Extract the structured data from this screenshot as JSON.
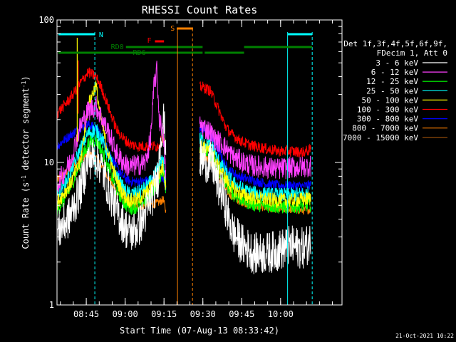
{
  "chart_data": {
    "type": "line",
    "title": "RHESSI Count Rates",
    "xlabel": "Start Time (07-Aug-13 08:33:42)",
    "ylabel_main": "Count Rate (s",
    "ylabel_sup1": "-1",
    "ylabel_mid": " detector segment",
    "ylabel_sup2": "-1",
    "ylabel_end": ")",
    "y_scale": "log",
    "ylim": [
      1,
      100
    ],
    "y_ticks": [
      {
        "v": 1,
        "label": "1"
      },
      {
        "v": 10,
        "label": "10"
      },
      {
        "v": 100,
        "label": "100"
      }
    ],
    "xlim_min": [
      0,
      110
    ],
    "x_ticks": [
      {
        "t": 11.3,
        "label": "08:45"
      },
      {
        "t": 26.3,
        "label": "09:00"
      },
      {
        "t": 41.3,
        "label": "09:15"
      },
      {
        "t": 56.3,
        "label": "09:30"
      },
      {
        "t": 71.3,
        "label": "09:45"
      },
      {
        "t": 86.3,
        "label": "10:00"
      }
    ],
    "legend": {
      "header1": "Det 1f,3f,4f,5f,6f,9f,",
      "header2": "FDecim 1, Att 0",
      "position": "right"
    },
    "series": [
      {
        "name": "3 - 6 keV",
        "color": "#ffffff",
        "noise": 0.34,
        "gap": [
          42,
          55
        ],
        "points": [
          [
            0,
            3.2
          ],
          [
            5,
            4.2
          ],
          [
            9,
            6.5
          ],
          [
            12,
            10.5
          ],
          [
            15,
            11
          ],
          [
            17,
            9.5
          ],
          [
            20,
            6.5
          ],
          [
            23,
            4.6
          ],
          [
            26,
            3.6
          ],
          [
            28,
            3.2
          ],
          [
            31,
            3.4
          ],
          [
            34,
            4.3
          ],
          [
            37,
            6
          ],
          [
            39,
            8
          ],
          [
            40,
            15
          ],
          [
            41,
            21
          ],
          [
            42,
            13
          ],
          [
            45,
            8
          ],
          [
            46,
            12
          ],
          [
            48,
            12
          ],
          [
            52,
            11.5
          ],
          [
            56,
            10.3
          ],
          [
            60,
            9.8
          ],
          [
            62,
            7
          ],
          [
            64,
            6
          ],
          [
            66,
            4.2
          ],
          [
            68,
            3.2
          ],
          [
            72,
            2.6
          ],
          [
            76,
            2.3
          ],
          [
            80,
            2.3
          ],
          [
            85,
            2.4
          ],
          [
            90,
            2.6
          ],
          [
            95,
            2.5
          ],
          [
            98,
            2.8
          ]
        ]
      },
      {
        "name": "6 - 12 keV",
        "color": "#ff40ff",
        "noise": 0.18,
        "gap": [
          42,
          55
        ],
        "points": [
          [
            0,
            7
          ],
          [
            5,
            10
          ],
          [
            9,
            18
          ],
          [
            12,
            23
          ],
          [
            15,
            25
          ],
          [
            17,
            21
          ],
          [
            20,
            16
          ],
          [
            23,
            11.5
          ],
          [
            26,
            9.8
          ],
          [
            28,
            9.3
          ],
          [
            31,
            9.6
          ],
          [
            34,
            9.9
          ],
          [
            36,
            14
          ],
          [
            37.5,
            35
          ],
          [
            38.5,
            44
          ],
          [
            39.5,
            20
          ],
          [
            41,
            16
          ],
          [
            42,
            8
          ],
          [
            45,
            14.5
          ],
          [
            46,
            16
          ],
          [
            48,
            18
          ],
          [
            52,
            19
          ],
          [
            56,
            18
          ],
          [
            59,
            16.5
          ],
          [
            61,
            14.5
          ],
          [
            64,
            13.5
          ],
          [
            66,
            12
          ],
          [
            68,
            11
          ],
          [
            72,
            10
          ],
          [
            76,
            9.4
          ],
          [
            80,
            9.3
          ],
          [
            85,
            9
          ],
          [
            90,
            9.2
          ],
          [
            95,
            9.3
          ],
          [
            98,
            9.5
          ]
        ]
      },
      {
        "name": "12 - 25 keV",
        "color": "#00ff00",
        "noise": 0.12,
        "gap": [
          42,
          55
        ],
        "points": [
          [
            0,
            4.6
          ],
          [
            5,
            6.5
          ],
          [
            9,
            10
          ],
          [
            12,
            13.5
          ],
          [
            15,
            14.5
          ],
          [
            17,
            12.5
          ],
          [
            20,
            9
          ],
          [
            23,
            6.5
          ],
          [
            26,
            5.2
          ],
          [
            28,
            4.8
          ],
          [
            31,
            4.9
          ],
          [
            34,
            5.4
          ],
          [
            37,
            6.4
          ],
          [
            39,
            7.5
          ],
          [
            41,
            9
          ],
          [
            42,
            6
          ],
          [
            45,
            9.5
          ],
          [
            46,
            11
          ],
          [
            48,
            12
          ],
          [
            52,
            13
          ],
          [
            56,
            12.5
          ],
          [
            60,
            11.2
          ],
          [
            62,
            9
          ],
          [
            64,
            7.8
          ],
          [
            66,
            6.8
          ],
          [
            68,
            6
          ],
          [
            72,
            5.4
          ],
          [
            76,
            5.1
          ],
          [
            80,
            5
          ],
          [
            85,
            4.9
          ],
          [
            90,
            4.9
          ],
          [
            95,
            5
          ],
          [
            98,
            5.1
          ]
        ]
      },
      {
        "name": "25 - 50 keV",
        "color": "#00ffff",
        "noise": 0.12,
        "gap": [
          42,
          55
        ],
        "points": [
          [
            0,
            5.8
          ],
          [
            5,
            8.2
          ],
          [
            9,
            12.5
          ],
          [
            12,
            16
          ],
          [
            15,
            17
          ],
          [
            17,
            15
          ],
          [
            20,
            11
          ],
          [
            23,
            8
          ],
          [
            26,
            6.4
          ],
          [
            28,
            6
          ],
          [
            31,
            6.1
          ],
          [
            34,
            6.6
          ],
          [
            37,
            7.6
          ],
          [
            39,
            9
          ],
          [
            41,
            10.5
          ],
          [
            42,
            7
          ],
          [
            45,
            11.5
          ],
          [
            46,
            13
          ],
          [
            48,
            14
          ],
          [
            52,
            15
          ],
          [
            56,
            14.5
          ],
          [
            60,
            13
          ],
          [
            62,
            10.5
          ],
          [
            64,
            9.2
          ],
          [
            66,
            8
          ],
          [
            68,
            7.2
          ],
          [
            72,
            6.4
          ],
          [
            76,
            6.1
          ],
          [
            80,
            6
          ],
          [
            85,
            5.9
          ],
          [
            90,
            5.9
          ],
          [
            95,
            6
          ],
          [
            98,
            6.1
          ]
        ]
      },
      {
        "name": "50 - 100 keV",
        "color": "#ffff00",
        "noise": 0.12,
        "gap": [
          42,
          55
        ],
        "points": [
          [
            0,
            5.2
          ],
          [
            5,
            7
          ],
          [
            9,
            10
          ],
          [
            12,
            25
          ],
          [
            15,
            35
          ],
          [
            17,
            20
          ],
          [
            20,
            11
          ],
          [
            23,
            7.5
          ],
          [
            26,
            5.8
          ],
          [
            28,
            5.4
          ],
          [
            31,
            5.5
          ],
          [
            34,
            6
          ],
          [
            37,
            7
          ],
          [
            39,
            8
          ],
          [
            41,
            9.5
          ],
          [
            42,
            6.5
          ],
          [
            45,
            10
          ],
          [
            46,
            11.5
          ],
          [
            48,
            12.8
          ],
          [
            52,
            13.5
          ],
          [
            56,
            13
          ],
          [
            60,
            11.8
          ],
          [
            62,
            9.5
          ],
          [
            64,
            8.3
          ],
          [
            66,
            7.2
          ],
          [
            68,
            6.5
          ],
          [
            72,
            5.9
          ],
          [
            76,
            5.6
          ],
          [
            80,
            5.5
          ],
          [
            85,
            5.4
          ],
          [
            90,
            5.4
          ],
          [
            95,
            5.5
          ],
          [
            98,
            5.6
          ]
        ]
      },
      {
        "name": "100 - 300 keV",
        "color": "#ff0000",
        "noise": 0.09,
        "gap": [
          42,
          55
        ],
        "points": [
          [
            0,
            22
          ],
          [
            5,
            28
          ],
          [
            9,
            36
          ],
          [
            12,
            43
          ],
          [
            15,
            40
          ],
          [
            17,
            34
          ],
          [
            20,
            24
          ],
          [
            23,
            17
          ],
          [
            26,
            14.5
          ],
          [
            28,
            13.5
          ],
          [
            31,
            13
          ],
          [
            34,
            13
          ],
          [
            37,
            13
          ],
          [
            39,
            13
          ],
          [
            41,
            15
          ],
          [
            42,
            12
          ],
          [
            45,
            25
          ],
          [
            46,
            28
          ],
          [
            48,
            30
          ],
          [
            52,
            33
          ],
          [
            56,
            34
          ],
          [
            59,
            32
          ],
          [
            61,
            27
          ],
          [
            63,
            22
          ],
          [
            65,
            18
          ],
          [
            67,
            16
          ],
          [
            70,
            14.5
          ],
          [
            74,
            13.3
          ],
          [
            78,
            12.8
          ],
          [
            82,
            12.3
          ],
          [
            86,
            12
          ],
          [
            90,
            12
          ],
          [
            95,
            11.8
          ],
          [
            98,
            12.3
          ]
        ]
      },
      {
        "name": "300 - 800 keV",
        "color": "#0000ff",
        "noise": 0.08,
        "gap": [
          42,
          55
        ],
        "points": [
          [
            0,
            13
          ],
          [
            5,
            15.5
          ],
          [
            9,
            17.5
          ],
          [
            12,
            18.5
          ],
          [
            15,
            17.5
          ],
          [
            17,
            15.5
          ],
          [
            20,
            12
          ],
          [
            23,
            9.2
          ],
          [
            26,
            7.8
          ],
          [
            28,
            7.4
          ],
          [
            31,
            7.3
          ],
          [
            34,
            7.4
          ],
          [
            37,
            7.5
          ],
          [
            39,
            7.6
          ],
          [
            41,
            8
          ],
          [
            42,
            6.5
          ],
          [
            45,
            14
          ],
          [
            46,
            15.5
          ],
          [
            48,
            16.5
          ],
          [
            52,
            17.5
          ],
          [
            56,
            17.2
          ],
          [
            59,
            16
          ],
          [
            61,
            13.5
          ],
          [
            63,
            11.5
          ],
          [
            65,
            9.5
          ],
          [
            67,
            8.7
          ],
          [
            70,
            8
          ],
          [
            74,
            7.6
          ],
          [
            78,
            7.3
          ],
          [
            82,
            7
          ],
          [
            86,
            6.9
          ],
          [
            90,
            6.9
          ],
          [
            95,
            6.8
          ],
          [
            98,
            7
          ]
        ]
      },
      {
        "name": "800 - 7000 keV",
        "color": "#ff8000",
        "noise": 0.07,
        "gap": [
          42,
          55
        ],
        "points": [
          [
            0,
            7.5
          ],
          [
            5,
            9
          ],
          [
            9,
            10.5
          ],
          [
            12,
            11.5
          ],
          [
            15,
            11
          ],
          [
            17,
            9.8
          ],
          [
            20,
            7.8
          ],
          [
            23,
            6.2
          ],
          [
            26,
            5.3
          ],
          [
            28,
            5
          ],
          [
            31,
            4.9
          ],
          [
            34,
            5
          ],
          [
            37,
            5.1
          ],
          [
            39,
            5.2
          ],
          [
            41,
            5.5
          ],
          [
            42,
            4.5
          ],
          [
            45,
            9.2
          ],
          [
            46,
            10.2
          ],
          [
            48,
            11
          ],
          [
            52,
            11.5
          ],
          [
            56,
            11.3
          ],
          [
            59,
            10.5
          ],
          [
            61,
            8.8
          ],
          [
            63,
            7.6
          ],
          [
            65,
            6.5
          ],
          [
            67,
            5.9
          ],
          [
            70,
            5.4
          ],
          [
            74,
            5.1
          ],
          [
            78,
            4.9
          ],
          [
            82,
            4.8
          ],
          [
            86,
            4.7
          ],
          [
            90,
            4.7
          ],
          [
            95,
            4.6
          ],
          [
            98,
            4.7
          ]
        ]
      },
      {
        "name": "7000 - 15000 keV",
        "color": "#a0520a",
        "noise": 0.04,
        "gap": [
          42,
          55
        ],
        "points": [
          [
            0,
            8
          ],
          [
            98,
            8
          ]
        ],
        "hidden_trace": true
      }
    ],
    "overlays": {
      "N_color": "#00ffff",
      "N_label": "N",
      "RD0_label": "RD0",
      "RD6_label": "RD6",
      "RD_color": "#008000",
      "F_label": "F",
      "F_color": "#ff0000",
      "S_label": "S",
      "S_color": "#ff8000"
    }
  },
  "timestamp": "21-Oct-2021 10:22"
}
